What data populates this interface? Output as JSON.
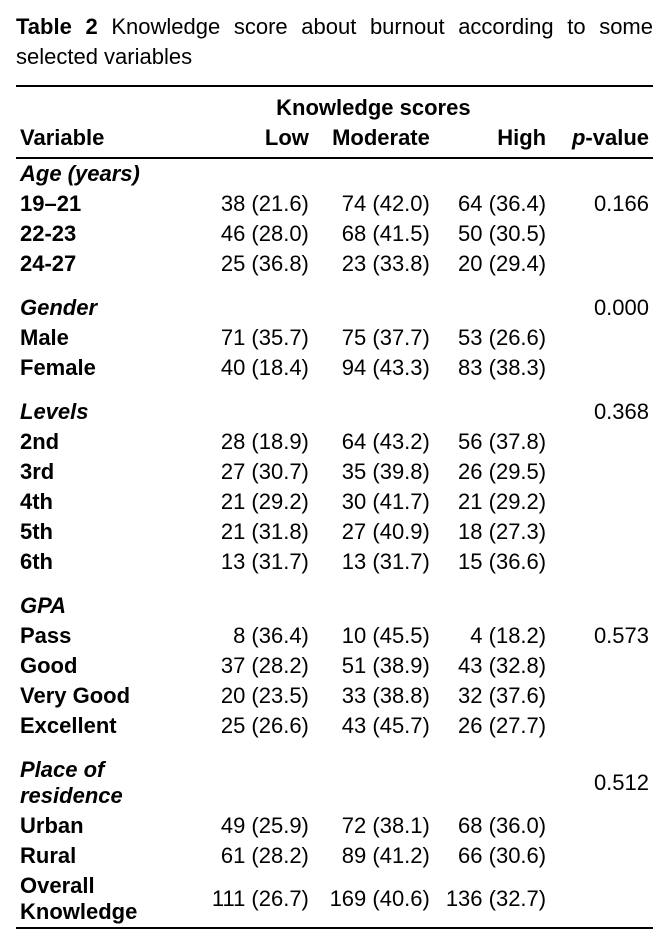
{
  "caption": {
    "label": "Table 2",
    "text": "Knowledge score about burnout according to some selected variables"
  },
  "headers": {
    "super": "Knowledge scores",
    "variable": "Variable",
    "low": "Low",
    "moderate": "Moderate",
    "high": "High",
    "pvalue_prefix": "p",
    "pvalue_suffix": "-value"
  },
  "groups": [
    {
      "name": "Age (years)",
      "p": "0.166",
      "p_on_first_row": true,
      "rows": [
        {
          "label": "19–21",
          "low": "38 (21.6)",
          "mod": "74 (42.0)",
          "high": "64 (36.4)"
        },
        {
          "label": "22-23",
          "low": "46 (28.0)",
          "mod": "68 (41.5)",
          "high": "50 (30.5)"
        },
        {
          "label": "24-27",
          "low": "25 (36.8)",
          "mod": "23 (33.8)",
          "high": "20 (29.4)"
        }
      ]
    },
    {
      "name": "Gender",
      "p": "0.000",
      "p_on_first_row": false,
      "rows": [
        {
          "label": "Male",
          "low": "71 (35.7)",
          "mod": "75 (37.7)",
          "high": "53 (26.6)"
        },
        {
          "label": "Female",
          "low": "40 (18.4)",
          "mod": "94 (43.3)",
          "high": "83 (38.3)"
        }
      ]
    },
    {
      "name": "Levels",
      "p": "0.368",
      "p_on_first_row": false,
      "rows": [
        {
          "label": "2nd",
          "low": "28 (18.9)",
          "mod": "64 (43.2)",
          "high": "56 (37.8)"
        },
        {
          "label": "3rd",
          "low": "27 (30.7)",
          "mod": "35 (39.8)",
          "high": "26 (29.5)"
        },
        {
          "label": "4th",
          "low": "21 (29.2)",
          "mod": "30 (41.7)",
          "high": "21 (29.2)"
        },
        {
          "label": "5th",
          "low": "21 (31.8)",
          "mod": "27 (40.9)",
          "high": "18 (27.3)"
        },
        {
          "label": "6th",
          "low": "13 (31.7)",
          "mod": "13 (31.7)",
          "high": "15 (36.6)"
        }
      ]
    },
    {
      "name": "GPA",
      "p": "0.573",
      "p_on_first_row": true,
      "rows": [
        {
          "label": "Pass",
          "low": "8 (36.4)",
          "mod": "10 (45.5)",
          "high": "4 (18.2)"
        },
        {
          "label": "Good",
          "low": "37 (28.2)",
          "mod": "51 (38.9)",
          "high": "43 (32.8)"
        },
        {
          "label": "Very Good",
          "low": "20 (23.5)",
          "mod": "33 (38.8)",
          "high": "32 (37.6)"
        },
        {
          "label": "Excellent",
          "low": "25 (26.6)",
          "mod": "43 (45.7)",
          "high": "26 (27.7)"
        }
      ]
    },
    {
      "name": "Place of residence",
      "p": "0.512",
      "p_on_first_row": false,
      "rows": [
        {
          "label": "Urban",
          "low": "49 (25.9)",
          "mod": "72 (38.1)",
          "high": "68 (36.0)"
        },
        {
          "label": "Rural",
          "low": "61 (28.2)",
          "mod": "89 (41.2)",
          "high": "66 (30.6)"
        },
        {
          "label": "Overall Knowledge",
          "low": "111 (26.7)",
          "mod": "169 (40.6)",
          "high": "136 (32.7)"
        }
      ]
    }
  ]
}
